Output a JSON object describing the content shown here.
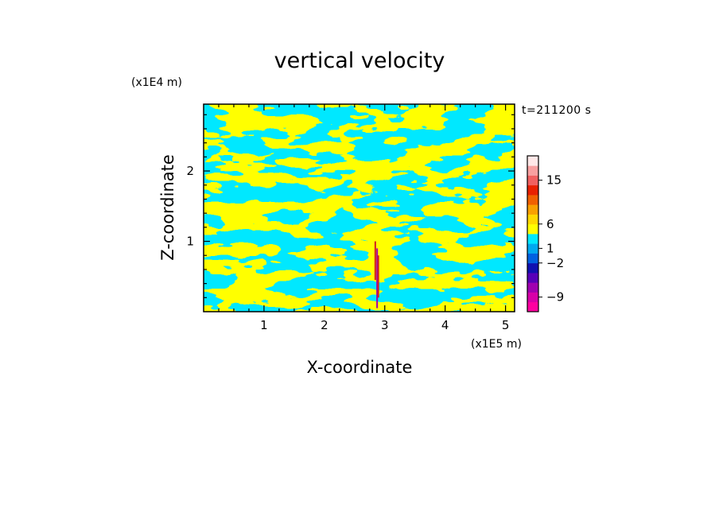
{
  "chart_data": {
    "type": "heatmap",
    "title": "vertical velocity",
    "xlabel": "X-coordinate",
    "ylabel": "Z-coordinate",
    "x_unit": "(x1E5 m)",
    "y_unit": "(x1E4 m)",
    "time_label": "t=211200 s",
    "xlim": [
      0,
      5.15
    ],
    "ylim": [
      0,
      2.95
    ],
    "x_ticks": [
      "1",
      "2",
      "3",
      "4",
      "5"
    ],
    "y_ticks": [
      "1",
      "2"
    ],
    "grid": false,
    "colorbar": {
      "labels": [
        "15",
        "6",
        "1",
        "−2",
        "−9"
      ],
      "label_values": [
        15,
        6,
        1,
        -2,
        -9
      ],
      "colors": [
        "#ff00a0",
        "#d800a8",
        "#a000b0",
        "#5800b8",
        "#1010b0",
        "#0060e0",
        "#00a8f0",
        "#00e8ff",
        "#ffff00",
        "#ffd800",
        "#f8a000",
        "#f06000",
        "#e82000",
        "#f06060",
        "#f8a0a0",
        "#ffe8e8"
      ],
      "min": -12,
      "max": 20
    },
    "dominant_colors": {
      "positive": "#ffff00",
      "negative": "#00e8ff",
      "strong_positive": "#d02020",
      "strong_negative": "#a000b0"
    }
  }
}
